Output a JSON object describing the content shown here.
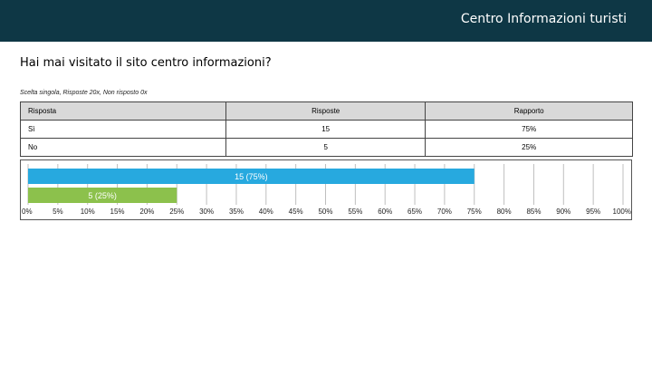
{
  "header": {
    "title": "Centro Informazioni turisti"
  },
  "question": "Hai mai visitato il sito centro informazioni?",
  "meta": "Scelta singola, Risposte 20x, Non risposto 0x",
  "table": {
    "headers": [
      "Risposta",
      "Risposte",
      "Rapporto"
    ],
    "rows": [
      [
        "Sì",
        "15",
        "75%"
      ],
      [
        "No",
        "5",
        "25%"
      ]
    ]
  },
  "chart_data": {
    "type": "bar",
    "orientation": "horizontal",
    "categories": [
      "Sì",
      "No"
    ],
    "values": [
      75,
      25
    ],
    "data_labels": [
      "15 (75%)",
      "5 (25%)"
    ],
    "colors": [
      "#27a9df",
      "#8cc14c"
    ],
    "xlim": [
      0,
      100
    ],
    "x_ticks": [
      "0%",
      "5%",
      "10%",
      "15%",
      "20%",
      "25%",
      "30%",
      "35%",
      "40%",
      "45%",
      "50%",
      "55%",
      "60%",
      "65%",
      "70%",
      "75%",
      "80%",
      "85%",
      "90%",
      "95%",
      "100%"
    ],
    "grid": true
  }
}
